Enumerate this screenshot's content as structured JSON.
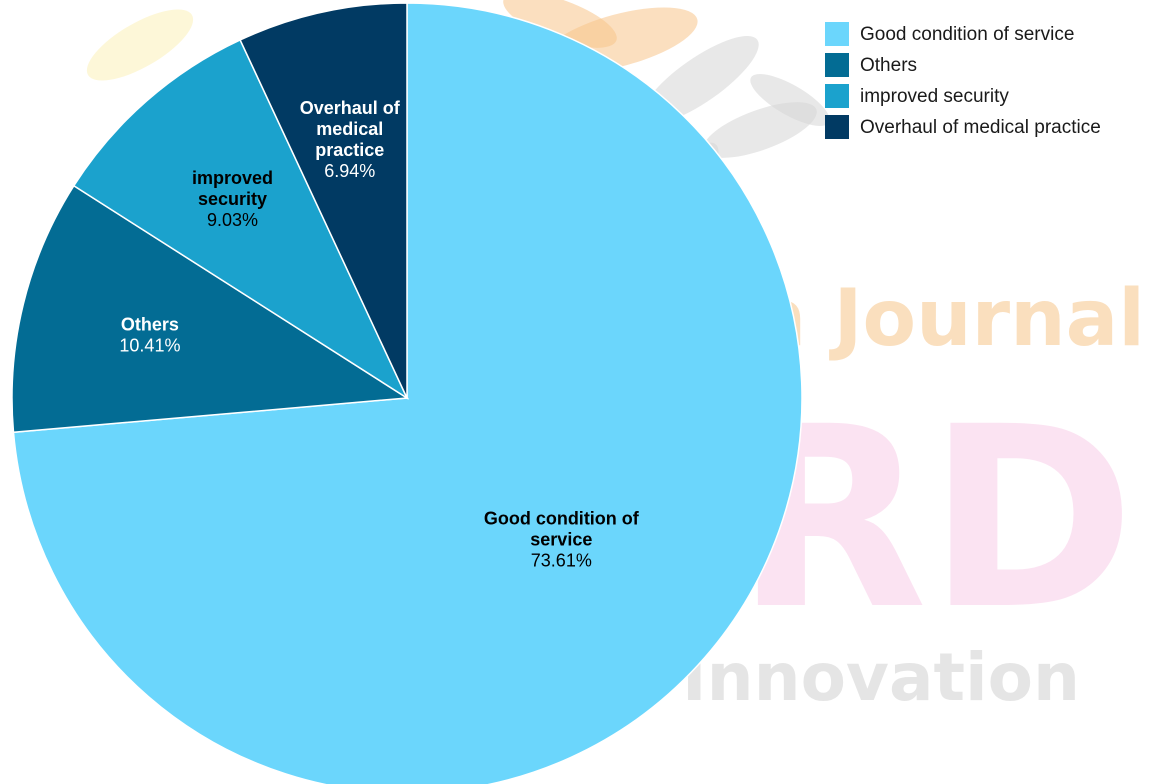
{
  "chart_data": {
    "type": "pie",
    "title": "",
    "slices": [
      {
        "label": "Good condition of service",
        "label_lines": [
          "Good condition of",
          "service"
        ],
        "percent_label": "73.61%",
        "value": 73.61,
        "color": "#6BD6FC"
      },
      {
        "label": "Others",
        "label_lines": [
          "Others"
        ],
        "percent_label": "10.41%",
        "value": 10.41,
        "color": "#036C94"
      },
      {
        "label": "improved security",
        "label_lines": [
          "improved",
          "security"
        ],
        "percent_label": "9.03%",
        "value": 9.03,
        "color": "#1BA2CD"
      },
      {
        "label": "Overhaul of medical practice",
        "label_lines": [
          "Overhaul of",
          "medical",
          "practice"
        ],
        "percent_label": "6.94%",
        "value": 6.94,
        "color": "#013A63"
      }
    ],
    "start_angle": "12 o'clock",
    "direction": "clockwise",
    "legend_position": "top-right"
  },
  "watermark": {
    "lines": [
      "ch Journal",
      "RD",
      "gn Innovation"
    ],
    "colors": {
      "orange": "#F7C58A",
      "pink": "#F8C9E6",
      "gray": "#D5D5D5",
      "yellow": "#FBF0B8"
    }
  }
}
